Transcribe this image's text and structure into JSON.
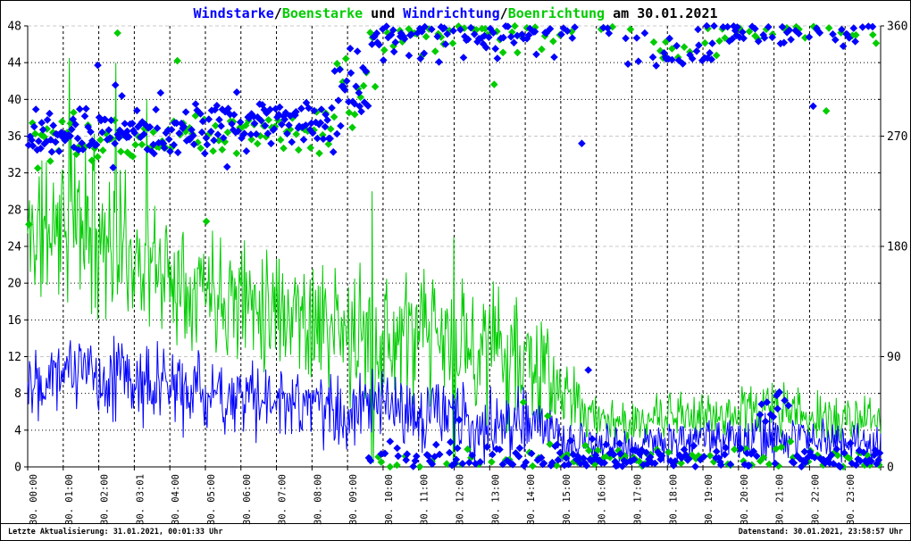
{
  "colors": {
    "wind": "#0000ff",
    "gust": "#00cc00",
    "text": "#000000",
    "grid": "#000000",
    "grid_quarter": "#c8c8c8",
    "bg": "#ffffff"
  },
  "title": {
    "segments": [
      {
        "text": "Windstarke",
        "color": "wind"
      },
      {
        "text": "/",
        "color": "text"
      },
      {
        "text": "Boenstarke",
        "color": "gust"
      },
      {
        "text": " und ",
        "color": "text"
      },
      {
        "text": "Windrichtung",
        "color": "wind"
      },
      {
        "text": "/",
        "color": "text"
      },
      {
        "text": "Boenrichtung",
        "color": "gust"
      },
      {
        "text": " am 30.01.2021",
        "color": "text"
      }
    ]
  },
  "footer": {
    "left": "Letzte Aktualisierung: 31.01.2021, 00:01:33 Uhr",
    "right": "Datenstand: 30.01.2021, 23:58:57 Uhr"
  },
  "chart_data": {
    "type": "line+scatter",
    "title": "Windstarke/Boenstarke und Windrichtung/Boenrichtung am 30.01.2021",
    "x": {
      "range_hours": [
        0,
        24
      ],
      "gridline_every_hours": 1,
      "hour_labels": [
        "30. 00:00",
        "30. 01:00",
        "30. 02:00",
        "30. 03:01",
        "30. 04:00",
        "30. 05:00",
        "30. 06:00",
        "30. 07:00",
        "30. 08:00",
        "30. 09:00",
        "30. 10:00",
        "30. 11:00",
        "30. 12:00",
        "30. 13:00",
        "30. 14:00",
        "30. 15:00",
        "30. 16:00",
        "30. 17:00",
        "30. 18:00",
        "30. 19:00",
        "30. 20:00",
        "30. 21:00",
        "30. 22:00",
        "30. 23:00"
      ]
    },
    "y_left": {
      "range": [
        0,
        48
      ],
      "ticks": [
        0,
        4,
        8,
        12,
        16,
        20,
        24,
        28,
        32,
        36,
        40,
        44,
        48
      ],
      "gridline_step": 4
    },
    "y_right": {
      "range": [
        0,
        360
      ],
      "ticks": [
        0,
        90,
        180,
        270,
        360
      ],
      "minor_tick_step": 30,
      "gray_quarter_lines_deg": [
        90,
        180,
        270,
        360
      ]
    },
    "series": [
      {
        "id": "boenstarke",
        "name": "Boenstarke",
        "kind": "line",
        "axis": "left",
        "color_key": "gust",
        "sample_step_min": 1.5,
        "seed": 11,
        "hourly_mean": [
          25,
          27,
          26,
          23,
          21,
          20,
          18.5,
          18,
          16,
          14,
          14,
          14,
          13.5,
          13,
          12,
          8,
          5.5,
          4.5,
          5.5,
          5.5,
          6,
          6.5,
          5.5,
          5
        ],
        "hourly_amp": [
          8,
          9,
          9,
          7,
          7,
          6.5,
          6.5,
          7,
          7,
          7,
          7,
          7.5,
          7,
          7,
          7.5,
          4,
          2.5,
          2.2,
          2.5,
          2.5,
          2.5,
          3,
          2.5,
          2.5
        ],
        "spikes": [
          {
            "t": 1.17,
            "v": 44.5
          },
          {
            "t": 2.48,
            "v": 44.0
          },
          {
            "t": 3.35,
            "v": 40.0
          },
          {
            "t": 9.69,
            "v": 30.0,
            "base": 0.4
          },
          {
            "t": 11.99,
            "v": 25.0,
            "base": 0.4
          }
        ]
      },
      {
        "id": "windstarke",
        "name": "Windstarke",
        "kind": "line",
        "axis": "left",
        "color_key": "wind",
        "sample_step_min": 1.5,
        "seed": 22,
        "hourly_mean": [
          10,
          11,
          10,
          9.5,
          8.5,
          8,
          7.5,
          7,
          6.5,
          6.2,
          6,
          5.8,
          5.2,
          5,
          5,
          3,
          2.5,
          2.2,
          2.8,
          3,
          3,
          3.2,
          2.8,
          2.6
        ],
        "hourly_amp": [
          4.5,
          4.5,
          4.5,
          4.5,
          4.5,
          4,
          4,
          4,
          4,
          4,
          4,
          4,
          4,
          4,
          4,
          2.6,
          2,
          2,
          2.2,
          2.2,
          2.2,
          2.6,
          2.2,
          2.2
        ],
        "spikes": []
      },
      {
        "id": "boenrichtung",
        "name": "Boenrichtung",
        "kind": "scatter",
        "axis": "right",
        "color_key": "gust",
        "marker": "diamond",
        "sample_step_min": 5,
        "seed": 33,
        "segments": [
          {
            "t0": 0.0,
            "t1": 4.3,
            "m": 264,
            "s": 18
          },
          {
            "t0": 4.3,
            "t1": 8.6,
            "m": 272,
            "s": 16
          },
          {
            "t0": 8.6,
            "t1": 9.6,
            "m": 305,
            "s": 28
          },
          {
            "t0": 9.6,
            "t1": 15.0,
            "m": 356,
            "s": 18
          },
          {
            "t0": 15.0,
            "t1": 17.6,
            "m": 7,
            "s": 12
          },
          {
            "t0": 17.6,
            "t1": 19.5,
            "m": 341,
            "s": 9,
            "m2": 7,
            "s2": 8,
            "p2": 0.5
          },
          {
            "t0": 19.5,
            "t1": 24.0,
            "m": 4,
            "s": 14
          }
        ]
      },
      {
        "id": "windrichtung",
        "name": "Windrichtung",
        "kind": "scatter",
        "axis": "right",
        "color_key": "wind",
        "marker": "diamond",
        "sample_step_min": 2.5,
        "seed": 44,
        "segments": [
          {
            "t0": 0.0,
            "t1": 4.3,
            "m": 272,
            "s": 20
          },
          {
            "t0": 4.3,
            "t1": 8.6,
            "m": 281,
            "s": 18
          },
          {
            "t0": 8.6,
            "t1": 9.6,
            "m": 312,
            "s": 26
          },
          {
            "t0": 9.6,
            "t1": 15.0,
            "m": 358,
            "s": 20
          },
          {
            "t0": 15.0,
            "t1": 17.6,
            "m": 5,
            "s": 13
          },
          {
            "t0": 17.6,
            "t1": 19.5,
            "m": 337,
            "s": 9,
            "m2": 8,
            "s2": 9,
            "p2": 0.35
          },
          {
            "t0": 19.5,
            "t1": 20.6,
            "m": 353,
            "s": 12,
            "m2": 10,
            "s2": 8,
            "p2": 0.45
          },
          {
            "t0": 20.6,
            "t1": 21.5,
            "m": 50,
            "s": 13,
            "m2": 356,
            "s2": 12,
            "p2": 0.5
          },
          {
            "t0": 21.5,
            "t1": 24.0,
            "m": 357,
            "s": 14,
            "m2": 8,
            "s2": 8,
            "p2": 0.45
          }
        ]
      }
    ]
  }
}
